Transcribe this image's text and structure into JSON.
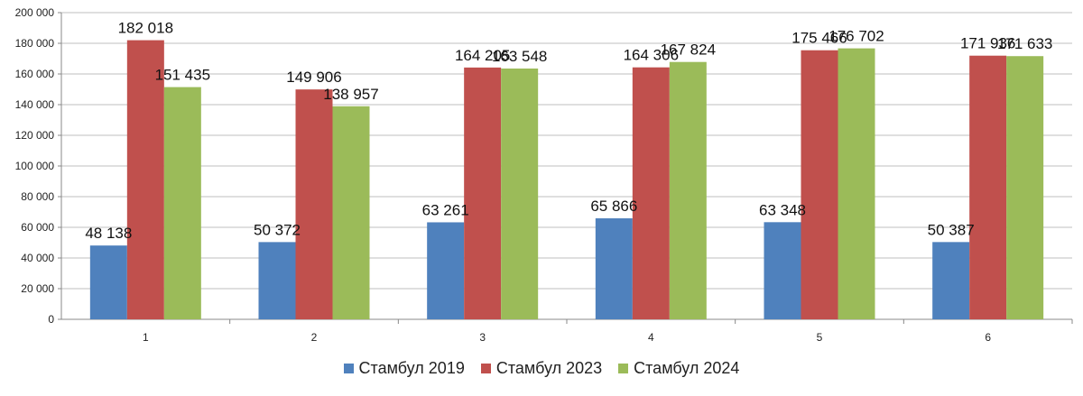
{
  "chart_data": {
    "type": "bar",
    "categories": [
      "1",
      "2",
      "3",
      "4",
      "5",
      "6"
    ],
    "series": [
      {
        "name": "Стамбул 2019",
        "color": "#4F81BD",
        "values": [
          48138,
          50372,
          63261,
          65866,
          63348,
          50387
        ],
        "labels": [
          "48 138",
          "50 372",
          "63 261",
          "65 866",
          "63 348",
          "50 387"
        ]
      },
      {
        "name": "Стамбул 2023",
        "color": "#C0504D",
        "values": [
          182018,
          149906,
          164205,
          164306,
          175466,
          171936
        ],
        "labels": [
          "182 018",
          "149 906",
          "164 205",
          "164 306",
          "175 466",
          "171 936"
        ]
      },
      {
        "name": "Стамбул 2024",
        "color": "#9BBB59",
        "values": [
          151435,
          138957,
          163548,
          167824,
          176702,
          171633
        ],
        "labels": [
          "151 435",
          "138 957",
          "163 548",
          "167 824",
          "176 702",
          "171 633"
        ]
      }
    ],
    "ylim": [
      0,
      200000
    ],
    "yticks": [
      0,
      20000,
      40000,
      60000,
      80000,
      100000,
      120000,
      140000,
      160000,
      180000,
      200000
    ],
    "ytick_labels": [
      "0",
      "20 000",
      "40 000",
      "60 000",
      "80 000",
      "100 000",
      "120 000",
      "140 000",
      "160 000",
      "180 000",
      "200 000"
    ],
    "grid": true,
    "legend_position": "bottom"
  }
}
